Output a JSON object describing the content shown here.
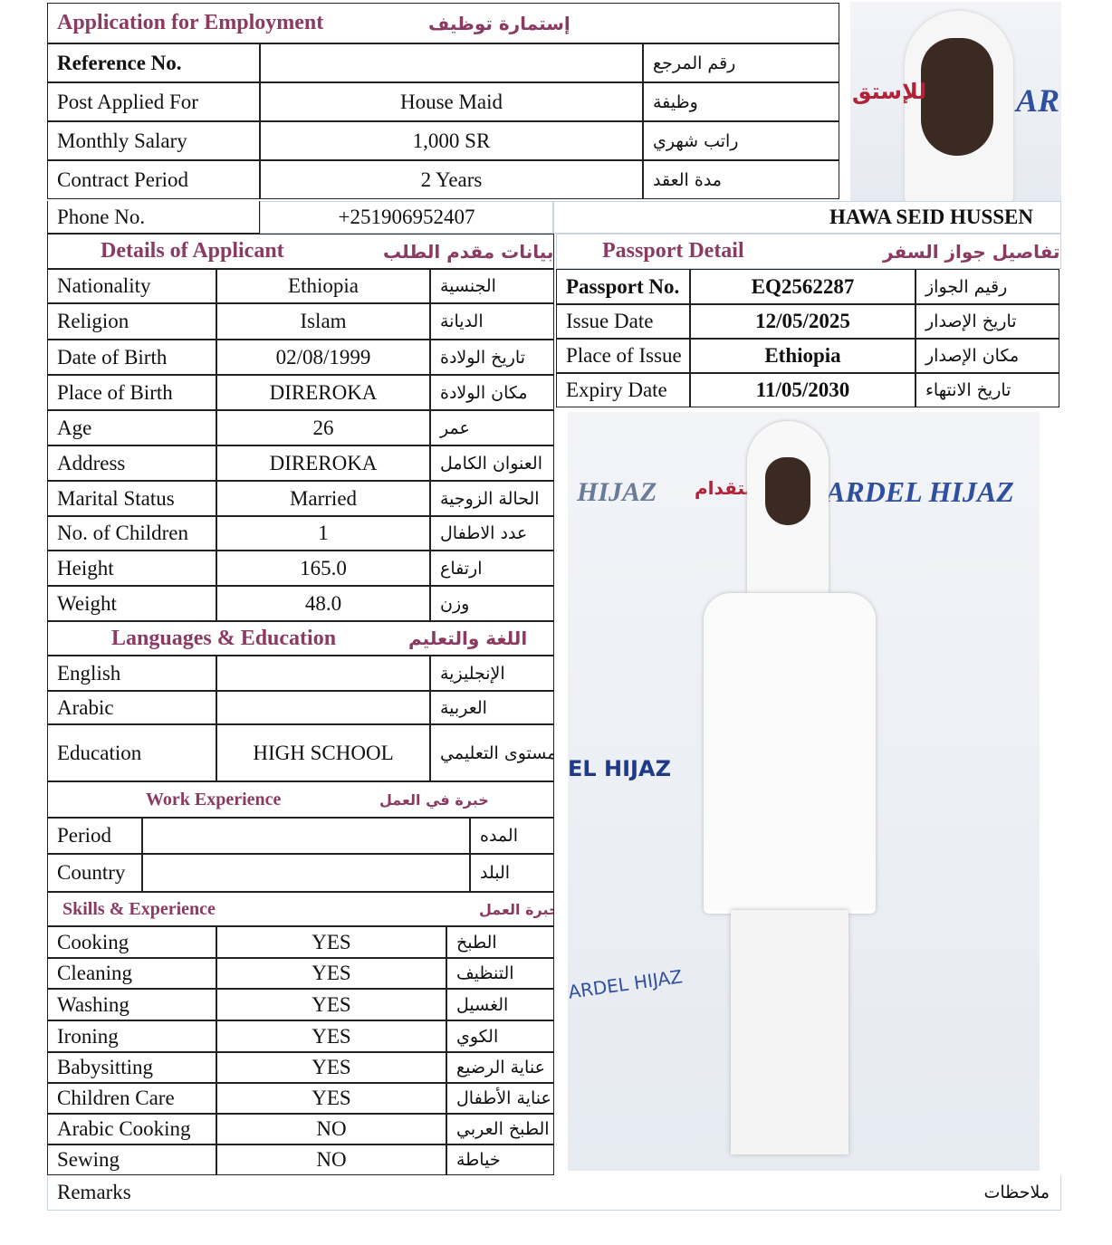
{
  "header": {
    "title_en": "Application for Employment",
    "title_ar": "إستمارة توظيف"
  },
  "top_rows": [
    {
      "en": "Reference No.",
      "value": "",
      "ar": "رقم المرجع"
    },
    {
      "en": "Post Applied For",
      "value": "House Maid",
      "ar": "وظيفة"
    },
    {
      "en": "Monthly Salary",
      "value": "1,000 SR",
      "ar": "راتب شهري"
    },
    {
      "en": "Contract Period",
      "value": "2 Years",
      "ar": "مدة العقد"
    }
  ],
  "phone": {
    "label": "Phone No.",
    "value": "+251906952407"
  },
  "applicant_name": "HAWA SEID HUSSEN",
  "details": {
    "title_en": "Details of Applicant",
    "title_ar": "بيانات مقدم الطلب",
    "rows": [
      {
        "en": "Nationality",
        "value": "Ethiopia",
        "ar": "الجنسية"
      },
      {
        "en": "Religion",
        "value": "Islam",
        "ar": "الديانة"
      },
      {
        "en": "Date of Birth",
        "value": "02/08/1999",
        "ar": "تاريخ الولادة"
      },
      {
        "en": "Place of Birth",
        "value": "DIREROKA",
        "ar": "مكان الولادة"
      },
      {
        "en": "Age",
        "value": "26",
        "ar": "عمر"
      },
      {
        "en": "Address",
        "value": "DIREROKA",
        "ar": "العنوان الكامل"
      },
      {
        "en": "Marital Status",
        "value": "Married",
        "ar": "الحالة الزوجية"
      },
      {
        "en": "No. of Children",
        "value": "1",
        "ar": "عدد الاطفال"
      },
      {
        "en": "Height",
        "value": "165.0",
        "ar": "ارتفاع"
      },
      {
        "en": "Weight",
        "value": "48.0",
        "ar": "وزن"
      }
    ]
  },
  "languages": {
    "title_en": "Languages & Education",
    "title_ar": "اللغة والتعليم",
    "rows": [
      {
        "en": "English",
        "value": "",
        "ar": "الإنجليزية"
      },
      {
        "en": "Arabic",
        "value": "",
        "ar": "العربية"
      },
      {
        "en": "Education",
        "value": "HIGH SCHOOL",
        "ar": "المستوى التعليمي"
      }
    ]
  },
  "work": {
    "title_en": "Work Experience",
    "title_ar": "خبرة في العمل",
    "rows": [
      {
        "en": "Period",
        "value": "",
        "ar": "المده"
      },
      {
        "en": "Country",
        "value": "",
        "ar": "البلد"
      }
    ]
  },
  "skills": {
    "title_en": "Skills & Experience",
    "title_ar": "خبرة العمل",
    "rows": [
      {
        "en": "Cooking",
        "value": "YES",
        "ar": "الطبخ"
      },
      {
        "en": "Cleaning",
        "value": "YES",
        "ar": "التنظيف"
      },
      {
        "en": "Washing",
        "value": "YES",
        "ar": "الغسيل"
      },
      {
        "en": "Ironing",
        "value": "YES",
        "ar": "الكوي"
      },
      {
        "en": "Babysitting",
        "value": "YES",
        "ar": "عناية الرضيع"
      },
      {
        "en": "Children Care",
        "value": "YES",
        "ar": "عناية الأطفال"
      },
      {
        "en": "Arabic Cooking",
        "value": "NO",
        "ar": "الطبخ العربي"
      },
      {
        "en": "Sewing",
        "value": "NO",
        "ar": "خياطة"
      }
    ]
  },
  "passport": {
    "title_en": "Passport Detail",
    "title_ar": "تفاصيل جواز السفر",
    "rows": [
      {
        "en": "Passport No.",
        "value": "EQ2562287",
        "ar": "رقيم الجواز"
      },
      {
        "en": "Issue Date",
        "value": "12/05/2025",
        "ar": "تاريخ الإصدار"
      },
      {
        "en": "Place of Issue",
        "value": "Ethiopia",
        "ar": "مكان الإصدار"
      },
      {
        "en": "Expiry Date",
        "value": "11/05/2030",
        "ar": "تاريخ الانتهاء"
      }
    ]
  },
  "remarks": {
    "en": "Remarks",
    "ar": "ملاحظات"
  },
  "photo_watermarks": [
    "ARDEL HIJAZ",
    "HIJAZ",
    "EL HIJAZ",
    "ARDEL HIJAZ",
    "للإستقدام"
  ],
  "colors": {
    "heading": "#8b3a62",
    "watermark_blue": "#2f4fa0",
    "watermark_red": "#b2233a"
  }
}
